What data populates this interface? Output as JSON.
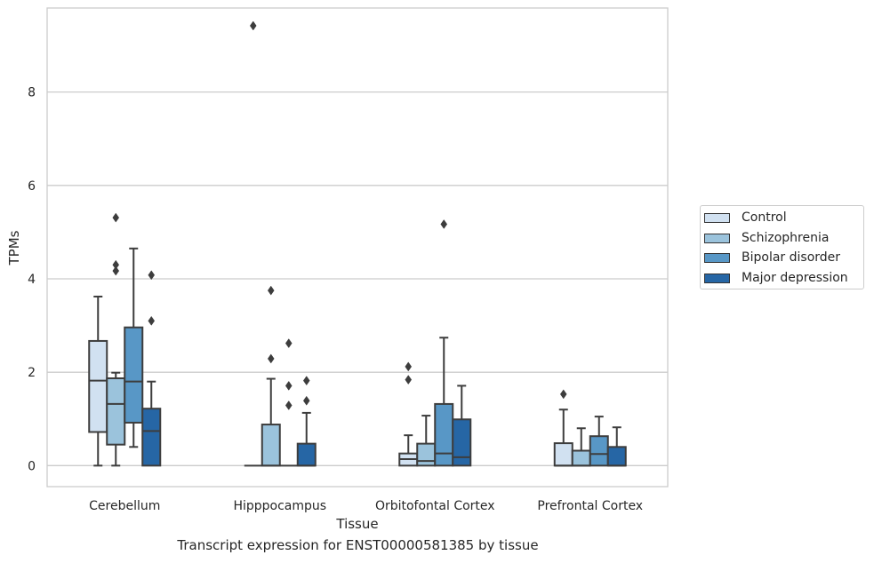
{
  "chart_data": {
    "type": "box",
    "xlabel": "Tissue",
    "ylabel": "TPMs",
    "caption": "Transcript expression for ENST00000581385 by tissue",
    "ylim": [
      -0.45,
      9.8
    ],
    "yticks": [
      0,
      2,
      4,
      6,
      8
    ],
    "grid": "horizontal",
    "legend_position": "right",
    "categories": [
      "Cerebellum",
      "Hipppocampus",
      "Orbitofontal Cortex",
      "Prefrontal Cortex"
    ],
    "series": [
      {
        "name": "Control",
        "color": "#d1e1f1",
        "boxes": [
          {
            "whislo": 0.0,
            "q1": 0.72,
            "med": 1.82,
            "q3": 2.67,
            "whishi": 3.62,
            "fliers": []
          },
          {
            "whislo": 0.0,
            "q1": 0.0,
            "med": 0.0,
            "q3": 0.0,
            "whishi": 0.0,
            "fliers": [
              9.42
            ]
          },
          {
            "whislo": 0.0,
            "q1": 0.0,
            "med": 0.14,
            "q3": 0.26,
            "whishi": 0.65,
            "fliers": [
              1.84,
              2.12
            ]
          },
          {
            "whislo": 0.0,
            "q1": 0.0,
            "med": 0.0,
            "q3": 0.48,
            "whishi": 1.2,
            "fliers": [
              1.53
            ]
          }
        ]
      },
      {
        "name": "Schizophrenia",
        "color": "#9bc3dc",
        "boxes": [
          {
            "whislo": 0.0,
            "q1": 0.45,
            "med": 1.32,
            "q3": 1.87,
            "whishi": 1.99,
            "fliers": [
              4.17,
              4.3,
              5.31
            ]
          },
          {
            "whislo": 0.0,
            "q1": 0.0,
            "med": 0.0,
            "q3": 0.88,
            "whishi": 1.86,
            "fliers": [
              2.29,
              3.75
            ]
          },
          {
            "whislo": 0.0,
            "q1": 0.0,
            "med": 0.1,
            "q3": 0.47,
            "whishi": 1.07,
            "fliers": []
          },
          {
            "whislo": 0.0,
            "q1": 0.0,
            "med": 0.0,
            "q3": 0.32,
            "whishi": 0.8,
            "fliers": []
          }
        ]
      },
      {
        "name": "Bipolar disorder",
        "color": "#5897c6",
        "boxes": [
          {
            "whislo": 0.4,
            "q1": 0.92,
            "med": 1.8,
            "q3": 2.96,
            "whishi": 4.65,
            "fliers": []
          },
          {
            "whislo": 0.0,
            "q1": 0.0,
            "med": 0.0,
            "q3": 0.0,
            "whishi": 0.0,
            "fliers": [
              1.29,
              1.71,
              2.62
            ]
          },
          {
            "whislo": 0.0,
            "q1": 0.0,
            "med": 0.26,
            "q3": 1.32,
            "whishi": 2.74,
            "fliers": [
              5.17
            ]
          },
          {
            "whislo": 0.0,
            "q1": 0.0,
            "med": 0.25,
            "q3": 0.63,
            "whishi": 1.05,
            "fliers": []
          }
        ]
      },
      {
        "name": "Major depression",
        "color": "#2666a5",
        "boxes": [
          {
            "whislo": 0.0,
            "q1": 0.0,
            "med": 0.74,
            "q3": 1.22,
            "whishi": 1.8,
            "fliers": [
              3.1,
              4.08
            ]
          },
          {
            "whislo": 0.0,
            "q1": 0.0,
            "med": 0.0,
            "q3": 0.47,
            "whishi": 1.13,
            "fliers": [
              1.39,
              1.82
            ]
          },
          {
            "whislo": 0.0,
            "q1": 0.0,
            "med": 0.18,
            "q3": 0.99,
            "whishi": 1.71,
            "fliers": []
          },
          {
            "whislo": 0.0,
            "q1": 0.0,
            "med": 0.0,
            "q3": 0.4,
            "whishi": 0.82,
            "fliers": []
          }
        ]
      }
    ]
  }
}
